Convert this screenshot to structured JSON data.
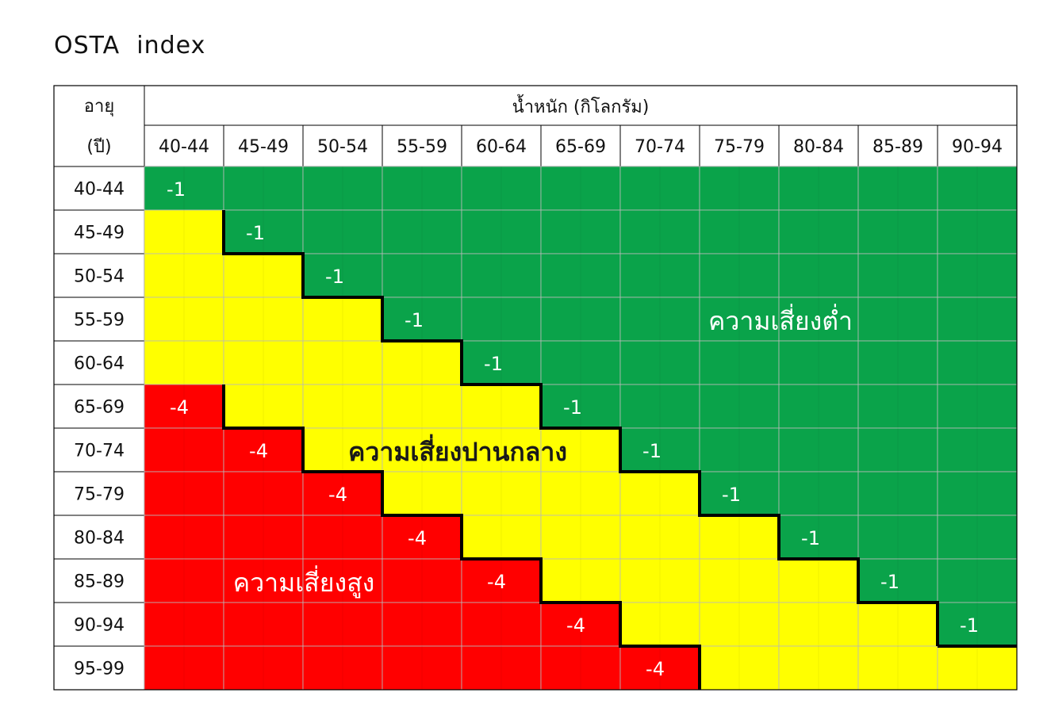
{
  "title": "OSTA  index",
  "colors": {
    "low": "#0aa34a",
    "moderate": "#ffff00",
    "high": "#ff0000",
    "border": "#000000"
  },
  "chart_data": {
    "type": "heatmap",
    "title": "OSTA  index",
    "row_header_line1": "อายุ",
    "row_header_line2": "(ปี)",
    "column_header": "น้ำหนัก (กิโลกรัม)",
    "columns": [
      "40-44",
      "45-49",
      "50-54",
      "55-59",
      "60-64",
      "65-69",
      "70-74",
      "75-79",
      "80-84",
      "85-89",
      "90-94"
    ],
    "rows": [
      "40-44",
      "45-49",
      "50-54",
      "55-59",
      "60-64",
      "65-69",
      "70-74",
      "75-79",
      "80-84",
      "85-89",
      "90-94",
      "95-99"
    ],
    "categories": {
      "low": "ความเสี่ยงต่ำ",
      "moderate": "ความเสี่ยงปานกลาง",
      "high": "ความเสี่ยงสูง"
    },
    "low_threshold_label": "-1",
    "high_threshold_label": "-4",
    "cells": [
      [
        "low",
        "low",
        "low",
        "low",
        "low",
        "low",
        "low",
        "low",
        "low",
        "low",
        "low"
      ],
      [
        "moderate",
        "low",
        "low",
        "low",
        "low",
        "low",
        "low",
        "low",
        "low",
        "low",
        "low"
      ],
      [
        "moderate",
        "moderate",
        "low",
        "low",
        "low",
        "low",
        "low",
        "low",
        "low",
        "low",
        "low"
      ],
      [
        "moderate",
        "moderate",
        "moderate",
        "low",
        "low",
        "low",
        "low",
        "low",
        "low",
        "low",
        "low"
      ],
      [
        "moderate",
        "moderate",
        "moderate",
        "moderate",
        "low",
        "low",
        "low",
        "low",
        "low",
        "low",
        "low"
      ],
      [
        "high",
        "moderate",
        "moderate",
        "moderate",
        "moderate",
        "low",
        "low",
        "low",
        "low",
        "low",
        "low"
      ],
      [
        "high",
        "high",
        "moderate",
        "moderate",
        "moderate",
        "moderate",
        "low",
        "low",
        "low",
        "low",
        "low"
      ],
      [
        "high",
        "high",
        "high",
        "moderate",
        "moderate",
        "moderate",
        "moderate",
        "low",
        "low",
        "low",
        "low"
      ],
      [
        "high",
        "high",
        "high",
        "high",
        "moderate",
        "moderate",
        "moderate",
        "moderate",
        "low",
        "low",
        "low"
      ],
      [
        "high",
        "high",
        "high",
        "high",
        "high",
        "moderate",
        "moderate",
        "moderate",
        "moderate",
        "low",
        "low"
      ],
      [
        "high",
        "high",
        "high",
        "high",
        "high",
        "high",
        "moderate",
        "moderate",
        "moderate",
        "moderate",
        "low"
      ],
      [
        "high",
        "high",
        "high",
        "high",
        "high",
        "high",
        "high",
        "moderate",
        "moderate",
        "moderate",
        "moderate"
      ]
    ]
  }
}
